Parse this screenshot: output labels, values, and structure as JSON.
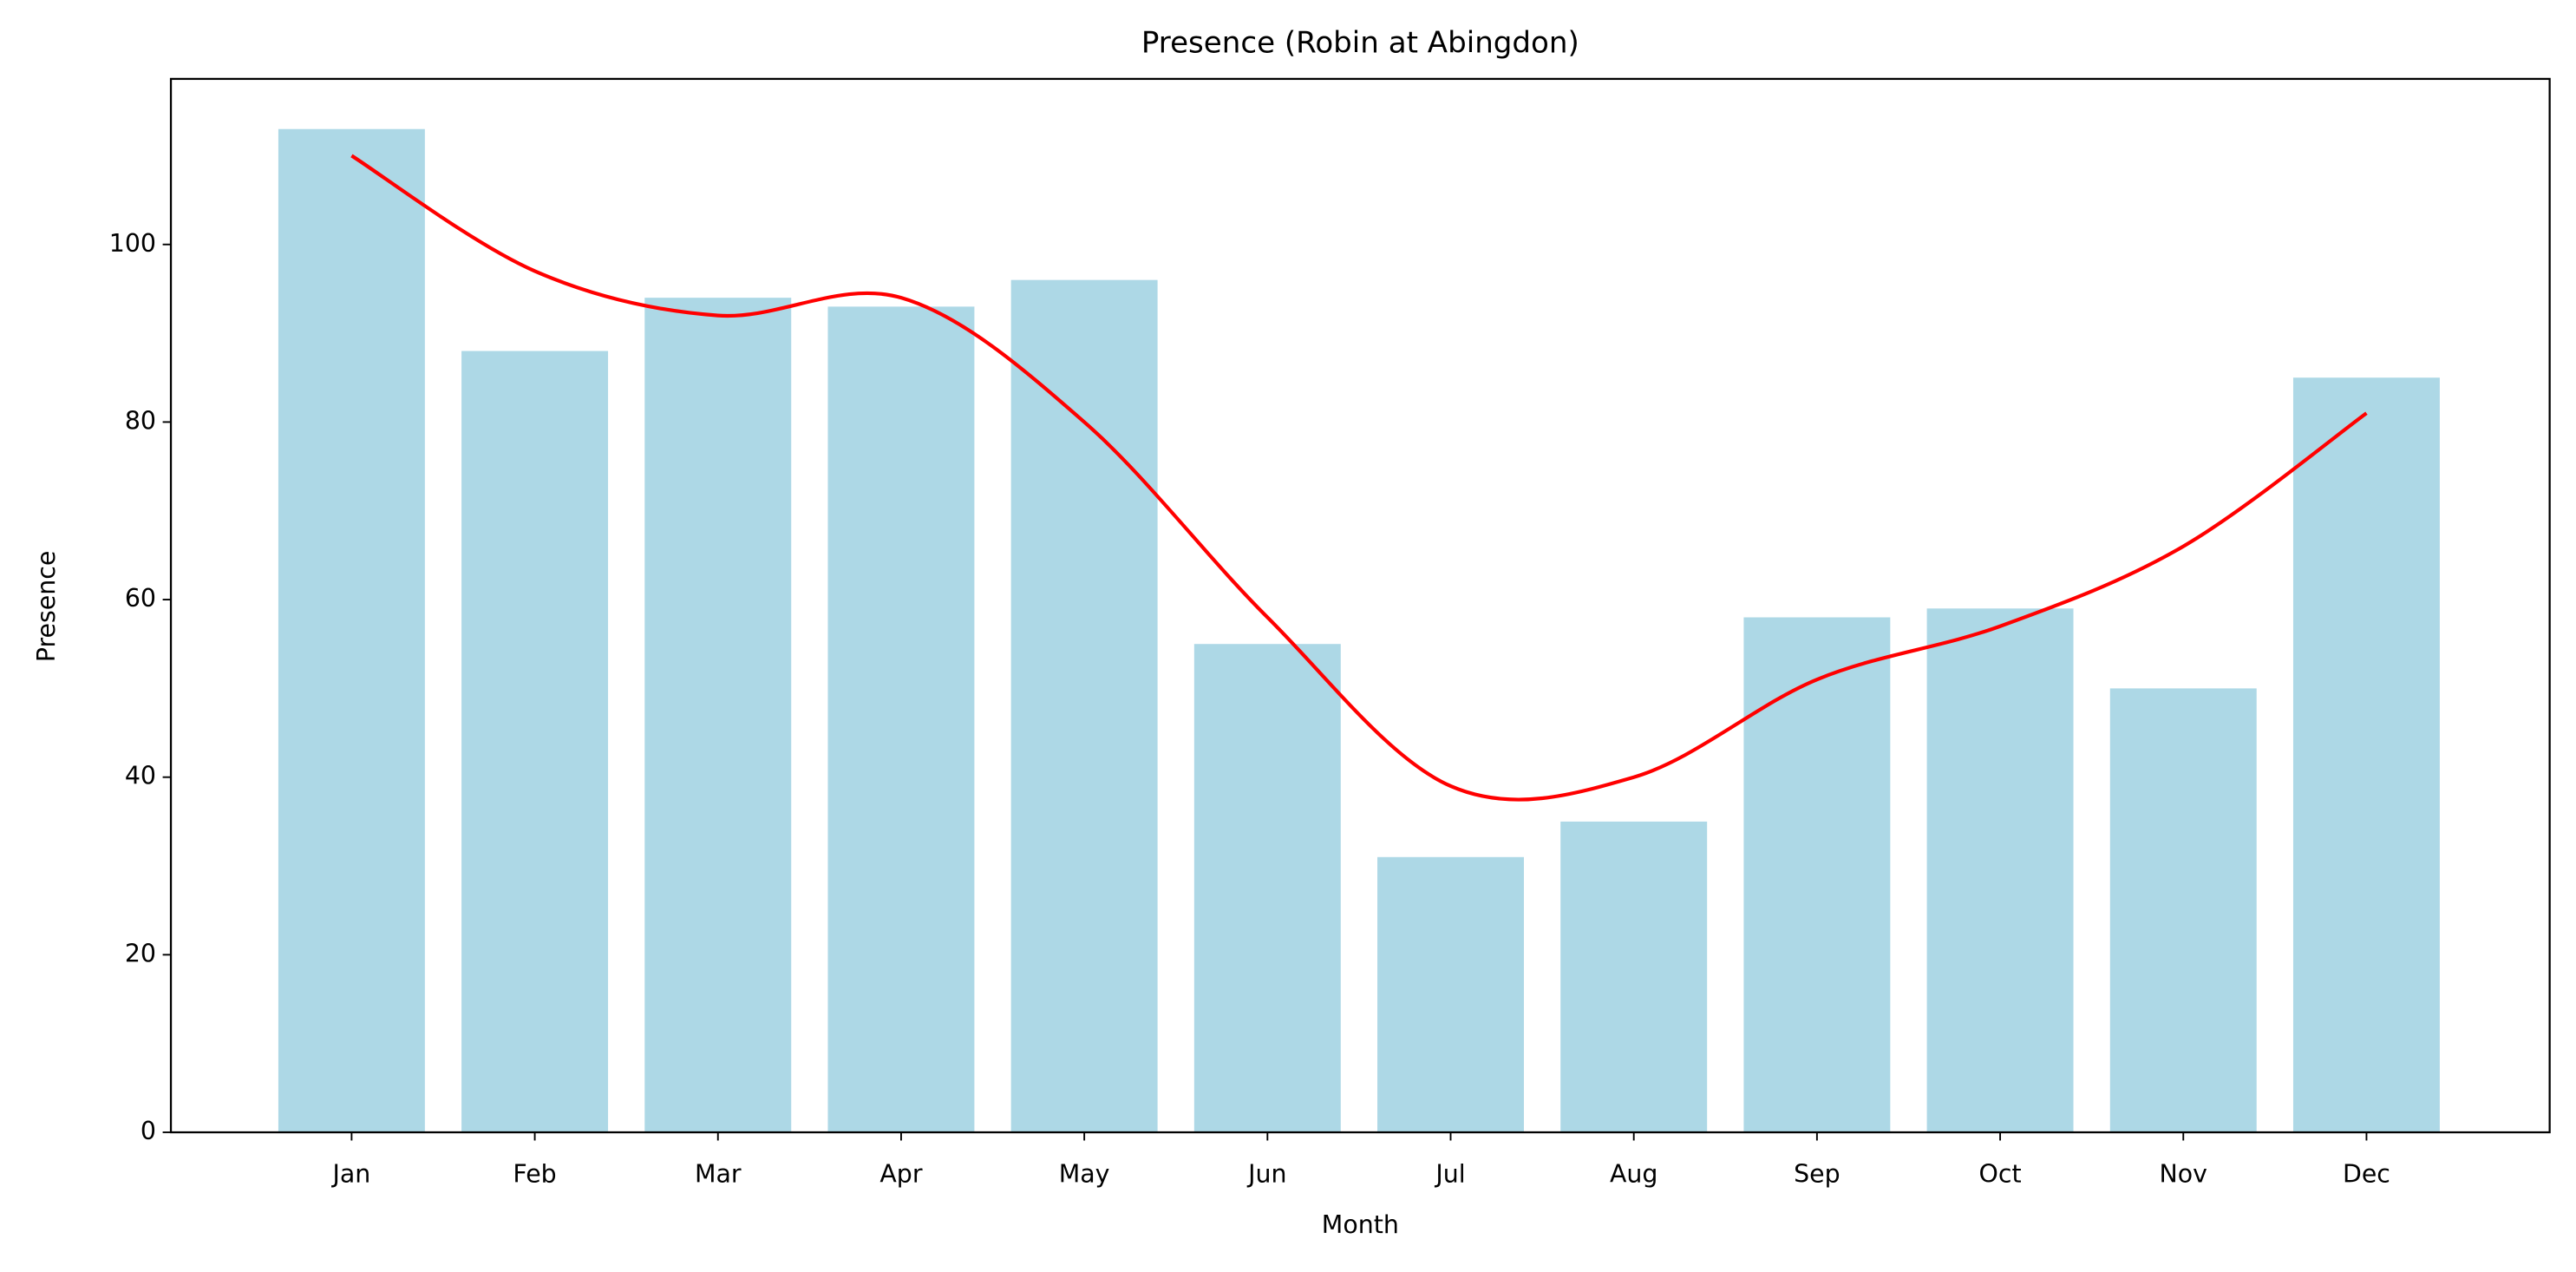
{
  "chart_data": {
    "type": "bar",
    "title": "Presence (Robin at Abingdon)",
    "x_label": "Month",
    "y_label": "Presence",
    "categories": [
      "Jan",
      "Feb",
      "Mar",
      "Apr",
      "May",
      "Jun",
      "Jul",
      "Aug",
      "Sep",
      "Oct",
      "Nov",
      "Dec"
    ],
    "values": [
      113,
      88,
      94,
      93,
      96,
      55,
      31,
      35,
      58,
      59,
      50,
      85
    ],
    "color": "#add8e6",
    "line_values": [
      110,
      97,
      92,
      94,
      80,
      58,
      39,
      40,
      51,
      57,
      66,
      81
    ],
    "line_color": "#ff0000",
    "ylim": [
      0,
      118.65
    ],
    "yticks": [
      0,
      20,
      40,
      60,
      80,
      100
    ],
    "grid": false
  }
}
